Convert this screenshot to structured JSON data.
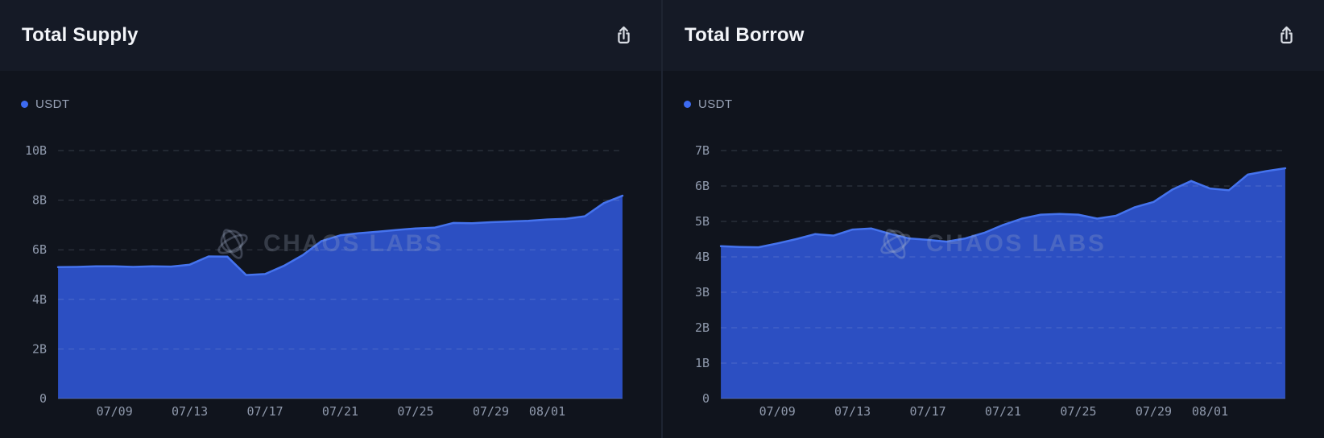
{
  "panels": [
    {
      "title": "Total Supply",
      "legend": "USDT",
      "export_icon": "share-upload-icon"
    },
    {
      "title": "Total Borrow",
      "legend": "USDT",
      "export_icon": "share-upload-icon"
    }
  ],
  "watermark": {
    "text": "CHAOS LABS",
    "logo_icon": "chaos-labs-logo-icon"
  },
  "icons": {
    "export": "share-upload-icon",
    "watermark_logo": "chaos-labs-logo-icon",
    "legend_marker": "legend-dot-icon"
  },
  "colors": {
    "header_bg": "#151a26",
    "body_bg": "#10141d",
    "divider": "#1e2431",
    "area_fill": "#2c4fc2",
    "area_line": "#4573ee",
    "legend_dot": "#3d6bf2",
    "title_text": "#f3f5f9",
    "muted_text": "#98a2b6",
    "tick_text": "#8f99ac",
    "grid_line": "rgba(203,213,235,0.20)",
    "baseline": "rgba(203,213,235,0.28)",
    "watermark": "rgba(163,176,201,0.25)",
    "icon": "#d9dde4"
  },
  "chart_data": [
    {
      "type": "area",
      "title": "Total Supply",
      "xlabel": "",
      "ylabel": "",
      "unit": "B USD",
      "grid": "horizontal-dashed",
      "legend_position": "top-left",
      "ylim": [
        0,
        10
      ],
      "ytick_values": [
        0,
        2,
        4,
        6,
        8,
        10
      ],
      "ytick_labels": [
        "0",
        "2B",
        "4B",
        "6B",
        "8B",
        "10B"
      ],
      "xtick_labels": [
        "07/09",
        "07/13",
        "07/17",
        "07/21",
        "07/25",
        "07/29",
        "08/01"
      ],
      "xtick_day_index": [
        3,
        7,
        11,
        15,
        19,
        23,
        26
      ],
      "x": [
        "07/06",
        "07/07",
        "07/08",
        "07/09",
        "07/10",
        "07/11",
        "07/12",
        "07/13",
        "07/14",
        "07/15",
        "07/16",
        "07/17",
        "07/18",
        "07/19",
        "07/20",
        "07/21",
        "07/22",
        "07/23",
        "07/24",
        "07/25",
        "07/26",
        "07/27",
        "07/28",
        "07/29",
        "07/30",
        "07/31",
        "08/01",
        "08/02",
        "08/03",
        "08/04",
        "08/05"
      ],
      "series": [
        {
          "name": "USDT",
          "values": [
            5.3,
            5.31,
            5.33,
            5.33,
            5.31,
            5.33,
            5.32,
            5.4,
            5.73,
            5.72,
            4.98,
            5.02,
            5.35,
            5.78,
            6.35,
            6.58,
            6.67,
            6.73,
            6.8,
            6.86,
            6.89,
            7.08,
            7.07,
            7.11,
            7.14,
            7.17,
            7.22,
            7.25,
            7.35,
            7.88,
            8.18
          ]
        }
      ]
    },
    {
      "type": "area",
      "title": "Total Borrow",
      "xlabel": "",
      "ylabel": "",
      "unit": "B USD",
      "grid": "horizontal-dashed",
      "legend_position": "top-left",
      "ylim": [
        0,
        7
      ],
      "ytick_values": [
        0,
        1,
        2,
        3,
        4,
        5,
        6,
        7
      ],
      "ytick_labels": [
        "0",
        "1B",
        "2B",
        "3B",
        "4B",
        "5B",
        "6B",
        "7B"
      ],
      "xtick_labels": [
        "07/09",
        "07/13",
        "07/17",
        "07/21",
        "07/25",
        "07/29",
        "08/01"
      ],
      "xtick_day_index": [
        3,
        7,
        11,
        15,
        19,
        23,
        26
      ],
      "x": [
        "07/06",
        "07/07",
        "07/08",
        "07/09",
        "07/10",
        "07/11",
        "07/12",
        "07/13",
        "07/14",
        "07/15",
        "07/16",
        "07/17",
        "07/18",
        "07/19",
        "07/20",
        "07/21",
        "07/22",
        "07/23",
        "07/24",
        "07/25",
        "07/26",
        "07/27",
        "07/28",
        "07/29",
        "07/30",
        "07/31",
        "08/01",
        "08/02",
        "08/03",
        "08/04",
        "08/05"
      ],
      "series": [
        {
          "name": "USDT",
          "values": [
            4.3,
            4.28,
            4.27,
            4.38,
            4.5,
            4.64,
            4.6,
            4.77,
            4.8,
            4.65,
            4.52,
            4.48,
            4.43,
            4.52,
            4.68,
            4.9,
            5.08,
            5.19,
            5.21,
            5.19,
            5.08,
            5.16,
            5.4,
            5.55,
            5.9,
            6.14,
            5.93,
            5.88,
            6.32,
            6.42,
            6.5
          ]
        }
      ]
    }
  ]
}
